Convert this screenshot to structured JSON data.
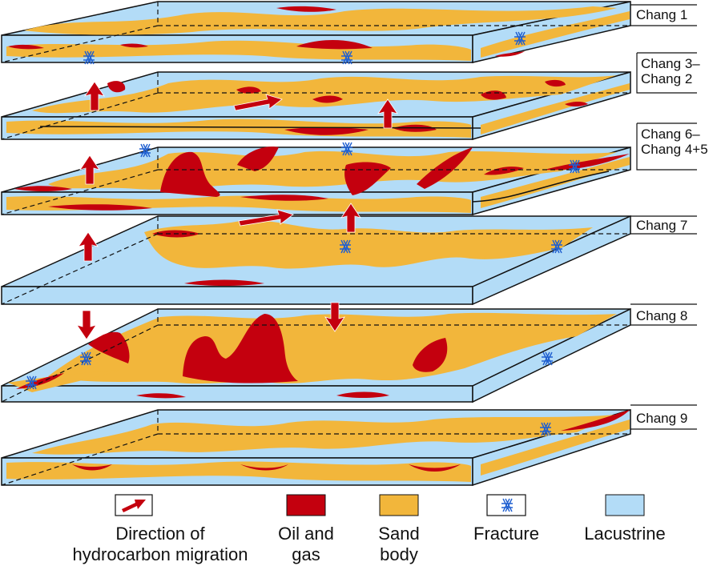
{
  "layers": [
    {
      "id": "chang-1",
      "label": "Chang 1"
    },
    {
      "id": "chang-3-2",
      "label": "Chang 3–\nChang 2"
    },
    {
      "id": "chang-6-45",
      "label": "Chang 6–\nChang 4+5"
    },
    {
      "id": "chang-7",
      "label": "Chang 7"
    },
    {
      "id": "chang-8",
      "label": "Chang 8"
    },
    {
      "id": "chang-9",
      "label": "Chang 9"
    }
  ],
  "legend": [
    {
      "id": "migration",
      "symbol": "arrow-icon",
      "label": "Direction of\nhydrocarbon migration"
    },
    {
      "id": "oil-gas",
      "symbol": "swatch",
      "label": "Oil and\ngas"
    },
    {
      "id": "sand",
      "symbol": "swatch",
      "label": "Sand\nbody"
    },
    {
      "id": "fracture",
      "symbol": "fracture-icon",
      "label": "Fracture"
    },
    {
      "id": "lacustrine",
      "symbol": "swatch",
      "label": "Lacustrine"
    }
  ],
  "colors": {
    "lacustrine": "#b3dcf7",
    "sand": "#f2b63b",
    "oil_gas": "#c4000e",
    "fracture": "#1f5fd0",
    "outline": "#111111"
  }
}
